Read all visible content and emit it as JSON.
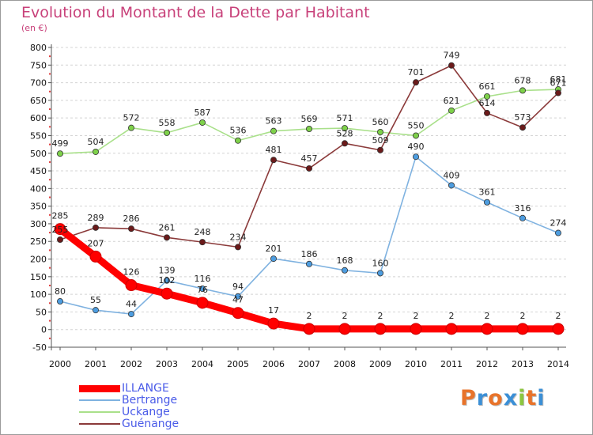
{
  "header": {
    "title": "Evolution du Montant de la Dette par Habitant",
    "subtitle": "(en €)"
  },
  "logo": {
    "letters": [
      "P",
      "r",
      "o",
      "x",
      "i",
      "t",
      "i"
    ],
    "colors": [
      "#e8732a",
      "#3b8fd6",
      "#e8732a",
      "#3b8fd6",
      "#8cc63f",
      "#e8732a",
      "#3b8fd6"
    ]
  },
  "chart_data": {
    "type": "line",
    "title": "Evolution du Montant de la Dette par Habitant",
    "subtitle": "(en €)",
    "xlabel": "",
    "ylabel": "",
    "x": [
      "2000",
      "2001",
      "2002",
      "2003",
      "2004",
      "2005",
      "2006",
      "2007",
      "2008",
      "2009",
      "2010",
      "2011",
      "2012",
      "2013",
      "2014"
    ],
    "ylim": [
      -50,
      800
    ],
    "yticks": [
      "-50",
      "0",
      "50",
      "100",
      "150",
      "200",
      "250",
      "300",
      "350",
      "400",
      "450",
      "500",
      "550",
      "600",
      "650",
      "700",
      "750",
      "800"
    ],
    "grid": "horizontal dashed",
    "legend_position": "bottom-left",
    "series": [
      {
        "name": "ILLANGE",
        "color": "#ff0000",
        "values": [
          285,
          207,
          126,
          102,
          76,
          47,
          17,
          2,
          2,
          2,
          2,
          2,
          2,
          2,
          2
        ],
        "labels": [
          "285",
          "207",
          "126",
          "102",
          "76",
          "47",
          "17",
          "2",
          "2",
          "2",
          "2",
          "2",
          "2",
          "2",
          "2"
        ]
      },
      {
        "name": "Bertrange",
        "color": "#7fb2e0",
        "marker": "#4d9de0",
        "values": [
          80,
          55,
          44,
          139,
          116,
          94,
          201,
          186,
          168,
          160,
          490,
          409,
          361,
          316,
          274
        ],
        "labels": [
          "80",
          "55",
          "44",
          "139",
          "116",
          "94",
          "201",
          "186",
          "168",
          "160",
          "490",
          "409",
          "361",
          "316",
          "274"
        ]
      },
      {
        "name": "Uckange",
        "color": "#a9e08a",
        "marker": "#7ed14a",
        "values": [
          499,
          504,
          572,
          558,
          587,
          536,
          563,
          569,
          571,
          560,
          550,
          621,
          661,
          678,
          681
        ],
        "labels": [
          "499",
          "504",
          "572",
          "558",
          "587",
          "536",
          "563",
          "569",
          "571",
          "560",
          "550",
          "621",
          "661",
          "678",
          "681"
        ]
      },
      {
        "name": "Guénange",
        "color": "#8b3a3a",
        "marker": "#6b1a1a",
        "values": [
          255,
          289,
          286,
          261,
          248,
          234,
          481,
          457,
          528,
          509,
          701,
          749,
          614,
          573,
          671
        ],
        "labels": [
          "255",
          "289",
          "286",
          "261",
          "248",
          "234",
          "481",
          "457",
          "528",
          "509",
          "701",
          "749",
          "614",
          "573",
          "671"
        ]
      }
    ]
  }
}
